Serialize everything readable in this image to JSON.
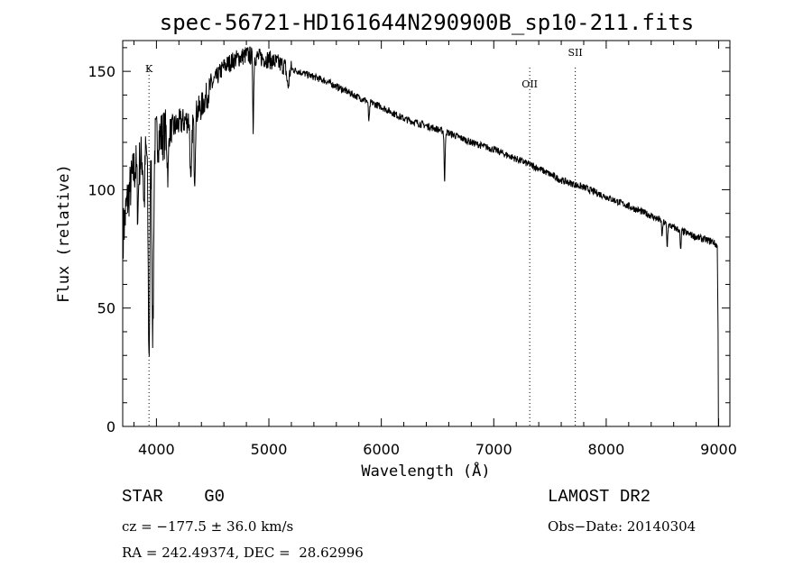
{
  "chart_data": {
    "type": "line",
    "title": "spec-56721-HD161644N290900B_sp10-211.fits",
    "xlabel": "Wavelength (Å)",
    "ylabel": "Flux (relative)",
    "xlim": [
      3700,
      9100
    ],
    "ylim": [
      0,
      163
    ],
    "xticks": [
      4000,
      5000,
      6000,
      7000,
      8000,
      9000
    ],
    "yticks": [
      0,
      50,
      100,
      150
    ],
    "grid": false,
    "continuum": [
      [
        3700,
        80
      ],
      [
        3740,
        95
      ],
      [
        3800,
        108
      ],
      [
        3850,
        112
      ],
      [
        3900,
        116
      ],
      [
        3950,
        118
      ],
      [
        4000,
        122
      ],
      [
        4100,
        124
      ],
      [
        4200,
        128
      ],
      [
        4300,
        130
      ],
      [
        4400,
        135
      ],
      [
        4500,
        145
      ],
      [
        4600,
        152
      ],
      [
        4700,
        155
      ],
      [
        4800,
        157
      ],
      [
        4900,
        156
      ],
      [
        5000,
        155
      ],
      [
        5200,
        151
      ],
      [
        5500,
        146
      ],
      [
        5800,
        139
      ],
      [
        6000,
        135
      ],
      [
        6200,
        130
      ],
      [
        6400,
        127
      ],
      [
        6600,
        124
      ],
      [
        6800,
        120
      ],
      [
        7000,
        117
      ],
      [
        7200,
        113
      ],
      [
        7400,
        109
      ],
      [
        7600,
        104
      ],
      [
        7800,
        101
      ],
      [
        8000,
        97
      ],
      [
        8200,
        93
      ],
      [
        8400,
        89
      ],
      [
        8600,
        84
      ],
      [
        8800,
        80
      ],
      [
        8950,
        78
      ],
      [
        8990,
        76
      ]
    ],
    "absorption_features": [
      {
        "wavelength": 3934,
        "depth": 88,
        "width": 10
      },
      {
        "wavelength": 3968,
        "depth": 80,
        "width": 10
      },
      {
        "wavelength": 3835,
        "depth": 20,
        "width": 8
      },
      {
        "wavelength": 3890,
        "depth": 22,
        "width": 8
      },
      {
        "wavelength": 4102,
        "depth": 18,
        "width": 8
      },
      {
        "wavelength": 4307,
        "depth": 30,
        "width": 10
      },
      {
        "wavelength": 4340,
        "depth": 26,
        "width": 8
      },
      {
        "wavelength": 4861,
        "depth": 30,
        "width": 6
      },
      {
        "wavelength": 5170,
        "depth": 8,
        "width": 14
      },
      {
        "wavelength": 5890,
        "depth": 8,
        "width": 8
      },
      {
        "wavelength": 6563,
        "depth": 22,
        "width": 6
      },
      {
        "wavelength": 8498,
        "depth": 6,
        "width": 6
      },
      {
        "wavelength": 8542,
        "depth": 10,
        "width": 6
      },
      {
        "wavelength": 8662,
        "depth": 9,
        "width": 6
      }
    ],
    "line_markers": [
      {
        "label": "K",
        "wavelength": 3934
      },
      {
        "label": "OII",
        "wavelength": 7320
      },
      {
        "label": "SII",
        "wavelength": 7725
      }
    ]
  },
  "info": {
    "classification": "STAR    G0",
    "survey": "LAMOST DR2",
    "redshift": "cz = −177.5 ± 36.0 km/s",
    "obs_date": "Obs−Date: 20140304",
    "coords": "RA = 242.49374, DEC =  28.62996"
  }
}
